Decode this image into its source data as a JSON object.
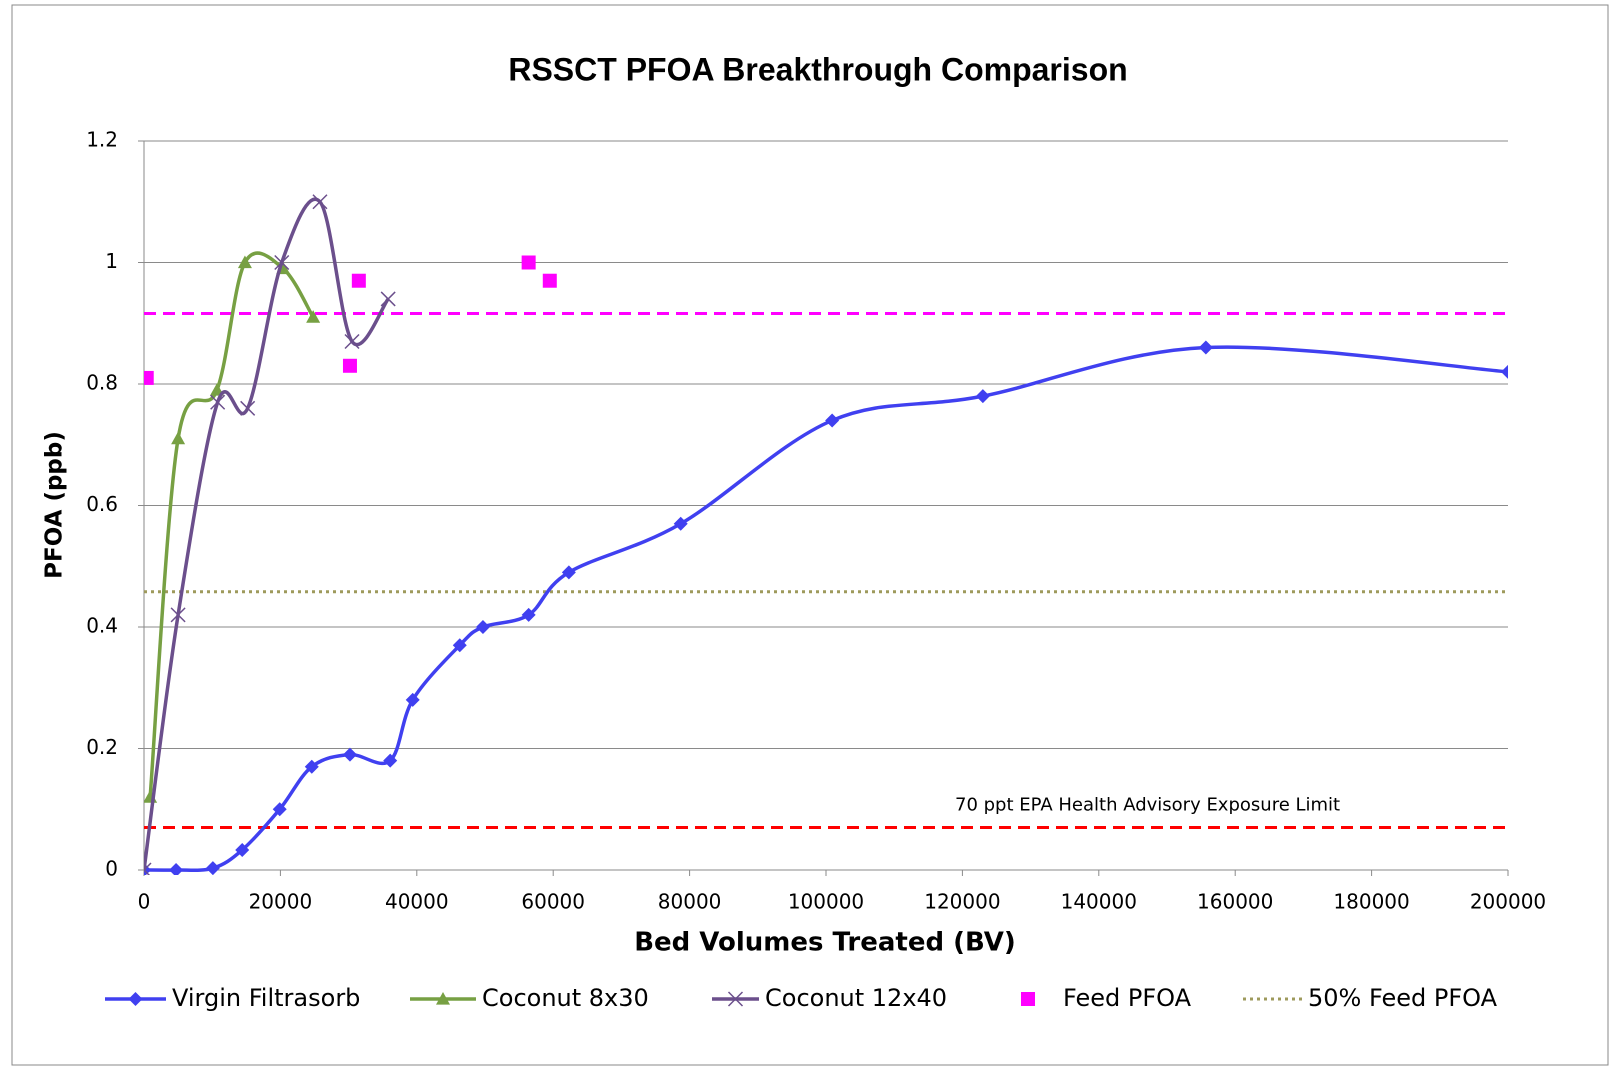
{
  "chart_data": {
    "type": "line",
    "title": "RSSCT PFOA Breakthrough Comparison",
    "x_label": "Bed Volumes  Treated (BV)",
    "y_label": "PFOA (ppb)",
    "xlim": [
      0,
      200000
    ],
    "xticks": [
      0,
      20000,
      40000,
      60000,
      80000,
      100000,
      120000,
      140000,
      160000,
      180000,
      200000
    ],
    "ylim": [
      0,
      1.2
    ],
    "yticks": [
      0,
      0.2,
      0.4,
      0.6,
      0.8,
      1,
      1.2
    ],
    "grid": true,
    "legend": "bottom",
    "series": [
      {
        "name": "Virgin Filtrasorb",
        "color": "#4040f0",
        "marker": "diamond",
        "line": true,
        "smooth": true,
        "x": [
          0,
          4700,
          10100,
          14400,
          19900,
          24600,
          30200,
          36100,
          39400,
          46300,
          49700,
          56400,
          62300,
          78700,
          100900,
          123000,
          155700,
          200000
        ],
        "values": [
          0,
          0,
          0.003,
          0.033,
          0.1,
          0.17,
          0.19,
          0.18,
          0.28,
          0.37,
          0.4,
          0.42,
          0.49,
          0.57,
          0.74,
          0.78,
          0.86,
          0.82
        ]
      },
      {
        "name": "Coconut 8x30",
        "color": "#77a043",
        "marker": "triangle",
        "line": true,
        "smooth": true,
        "x": [
          900,
          5000,
          10700,
          14800,
          20400,
          24800
        ],
        "values": [
          0.12,
          0.71,
          0.79,
          1,
          0.99,
          0.91
        ]
      },
      {
        "name": "Coconut 12x40",
        "color": "#6b4f8c",
        "marker": "x",
        "line": true,
        "smooth": true,
        "x": [
          0,
          5000,
          10800,
          15200,
          20200,
          25800,
          30500,
          35800
        ],
        "values": [
          0,
          0.42,
          0.77,
          0.76,
          1,
          1.1,
          0.87,
          0.94
        ]
      },
      {
        "name": "Feed PFOA",
        "color": "#ff00ff",
        "marker": "square",
        "line": false,
        "smooth": false,
        "x": [
          400,
          30200,
          31500,
          56400,
          59500
        ],
        "values": [
          0.81,
          0.83,
          0.97,
          1,
          0.97
        ]
      }
    ],
    "hlines": [
      {
        "value": 0.916,
        "color": "#ff00ff",
        "dash": "dashed"
      },
      {
        "name": "50% Feed PFOA",
        "value": 0.458,
        "color": "#9e9a5c",
        "dash": "dotted"
      },
      {
        "value": 0.07,
        "color": "#ff0000",
        "dash": "dashed",
        "label": "70 ppt EPA Health Advisory Exposure Limit"
      }
    ]
  }
}
